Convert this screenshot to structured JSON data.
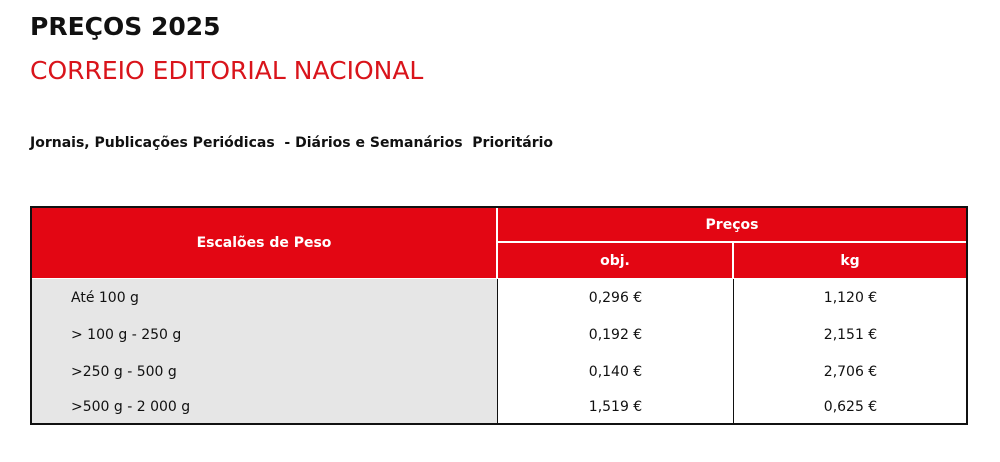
{
  "header": {
    "title": "PREÇOS 2025",
    "subtitle": "CORREIO EDITORIAL NACIONAL",
    "description": "Jornais, Publicações Periódicas  - Diários e Semanários  Prioritário"
  },
  "table": {
    "columns": {
      "weight": "Escalões de Peso",
      "prices": "Preços",
      "obj": "obj.",
      "kg": "kg"
    },
    "rows": [
      [
        "Até 100 g",
        "0,296 €",
        "1,120 €"
      ],
      [
        "> 100 g - 250 g",
        "0,192 €",
        "2,151 €"
      ],
      [
        ">250 g - 500 g",
        "0,140 €",
        "2,706 €"
      ],
      [
        ">500 g - 2 000 g",
        "1,519 €",
        "0,625 €"
      ]
    ]
  }
}
